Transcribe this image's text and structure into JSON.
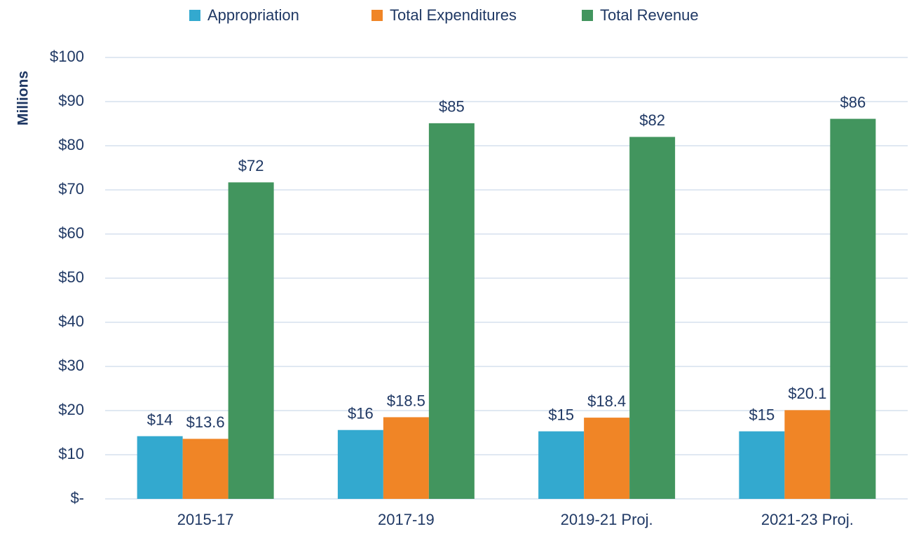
{
  "chart_data": {
    "type": "bar",
    "y_label": "Millions",
    "categories": [
      "2015-17",
      "2017-19",
      "2019-21 Proj.",
      "2021-23 Proj."
    ],
    "series": [
      {
        "name": "Appropriation",
        "color": "#33a9cf",
        "values": [
          14.2,
          15.6,
          15.3,
          15.3
        ],
        "value_labels": [
          "$14",
          "$16",
          "$15",
          "$15"
        ]
      },
      {
        "name": "Total Expenditures",
        "color": "#f08526",
        "values": [
          13.6,
          18.5,
          18.4,
          20.1
        ],
        "value_labels": [
          "$13.6",
          "$18.5",
          "$18.4",
          "$20.1"
        ]
      },
      {
        "name": "Total Revenue",
        "color": "#42955e",
        "values": [
          71.7,
          85.1,
          82.0,
          86.1
        ],
        "value_labels": [
          "$72",
          "$85",
          "$82",
          "$86"
        ]
      }
    ],
    "ylim": [
      0,
      100
    ],
    "yticks": [
      {
        "value": 0,
        "label": "$-"
      },
      {
        "value": 10,
        "label": "$10"
      },
      {
        "value": 20,
        "label": "$20"
      },
      {
        "value": 30,
        "label": "$30"
      },
      {
        "value": 40,
        "label": "$40"
      },
      {
        "value": 50,
        "label": "$50"
      },
      {
        "value": 60,
        "label": "$60"
      },
      {
        "value": 70,
        "label": "$70"
      },
      {
        "value": 80,
        "label": "$80"
      },
      {
        "value": 90,
        "label": "$90"
      },
      {
        "value": 100,
        "label": "$100"
      }
    ],
    "grid": true,
    "legend": "top"
  }
}
